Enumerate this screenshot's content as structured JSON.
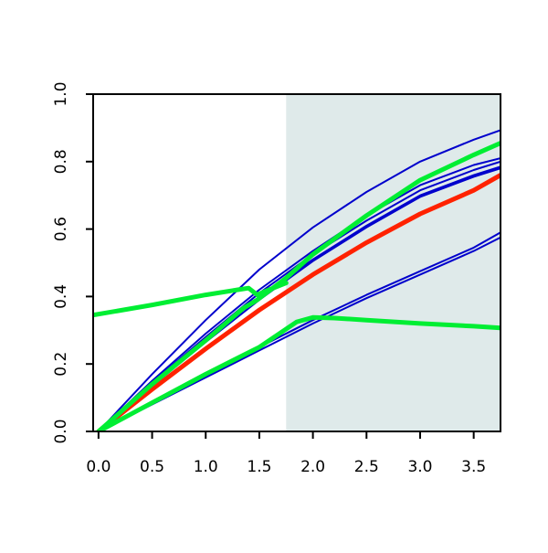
{
  "chart_data": {
    "type": "line",
    "title": "",
    "xlabel": "",
    "ylabel": "",
    "xlim": [
      -0.05,
      3.75
    ],
    "ylim": [
      0,
      1.0
    ],
    "grid": false,
    "x_ticks": [
      "0.0",
      "0.5",
      "1.0",
      "1.5",
      "2.0",
      "2.5",
      "3.0",
      "3.5"
    ],
    "y_ticks": [
      "0.0",
      "0.2",
      "0.4",
      "0.6",
      "0.8",
      "1.0"
    ],
    "shaded_region": {
      "x_start": 1.75,
      "x_end": 3.75,
      "color": "#dfeaea"
    },
    "series": [
      {
        "color": "#0000cc",
        "width": "thin",
        "points": [
          [
            0,
            0
          ],
          [
            0.5,
            0.17
          ],
          [
            1.0,
            0.33
          ],
          [
            1.5,
            0.48
          ],
          [
            2.0,
            0.605
          ],
          [
            2.5,
            0.71
          ],
          [
            3.0,
            0.8
          ],
          [
            3.5,
            0.865
          ],
          [
            3.75,
            0.893
          ]
        ]
      },
      {
        "color": "#0000cc",
        "width": "thin",
        "points": [
          [
            0,
            0
          ],
          [
            0.5,
            0.15
          ],
          [
            1.0,
            0.29
          ],
          [
            1.5,
            0.42
          ],
          [
            2.0,
            0.535
          ],
          [
            2.5,
            0.64
          ],
          [
            3.0,
            0.73
          ],
          [
            3.5,
            0.79
          ],
          [
            3.75,
            0.81
          ]
        ]
      },
      {
        "color": "#0000cc",
        "width": "thin",
        "points": [
          [
            0,
            0
          ],
          [
            0.5,
            0.145
          ],
          [
            1.0,
            0.28
          ],
          [
            1.5,
            0.41
          ],
          [
            2.0,
            0.525
          ],
          [
            2.5,
            0.625
          ],
          [
            3.0,
            0.715
          ],
          [
            3.5,
            0.775
          ],
          [
            3.75,
            0.8
          ]
        ]
      },
      {
        "color": "#0000cc",
        "width": "thin",
        "points": [
          [
            0,
            0
          ],
          [
            0.5,
            0.14
          ],
          [
            1.0,
            0.27
          ],
          [
            1.5,
            0.4
          ],
          [
            2.0,
            0.51
          ],
          [
            2.5,
            0.61
          ],
          [
            3.0,
            0.7
          ],
          [
            3.5,
            0.76
          ],
          [
            3.75,
            0.785
          ]
        ]
      },
      {
        "color": "#0000cc",
        "width": "thin",
        "points": [
          [
            0,
            0
          ],
          [
            0.5,
            0.135
          ],
          [
            1.0,
            0.265
          ],
          [
            1.5,
            0.39
          ],
          [
            2.0,
            0.505
          ],
          [
            2.5,
            0.605
          ],
          [
            3.0,
            0.695
          ],
          [
            3.5,
            0.755
          ],
          [
            3.75,
            0.78
          ]
        ]
      },
      {
        "color": "#0000cc",
        "width": "thin",
        "points": [
          [
            0,
            0
          ],
          [
            0.5,
            0.085
          ],
          [
            1.0,
            0.165
          ],
          [
            1.5,
            0.25
          ],
          [
            2.0,
            0.33
          ],
          [
            2.5,
            0.405
          ],
          [
            3.0,
            0.475
          ],
          [
            3.5,
            0.545
          ],
          [
            3.75,
            0.59
          ]
        ]
      },
      {
        "color": "#0000cc",
        "width": "thin",
        "points": [
          [
            0,
            0
          ],
          [
            0.5,
            0.08
          ],
          [
            1.0,
            0.16
          ],
          [
            1.5,
            0.24
          ],
          [
            2.0,
            0.32
          ],
          [
            2.5,
            0.395
          ],
          [
            3.0,
            0.465
          ],
          [
            3.5,
            0.535
          ],
          [
            3.75,
            0.575
          ]
        ]
      },
      {
        "color": "#ff2200",
        "width": "thick",
        "points": [
          [
            0,
            0
          ],
          [
            0.5,
            0.125
          ],
          [
            1.0,
            0.245
          ],
          [
            1.5,
            0.36
          ],
          [
            2.0,
            0.465
          ],
          [
            2.5,
            0.56
          ],
          [
            3.0,
            0.645
          ],
          [
            3.5,
            0.715
          ],
          [
            3.75,
            0.76
          ]
        ]
      },
      {
        "color": "#00ee33",
        "width": "thick",
        "points": [
          [
            0,
            0
          ],
          [
            0.5,
            0.14
          ],
          [
            1.0,
            0.27
          ],
          [
            1.35,
            0.365
          ],
          [
            1.48,
            0.39
          ],
          [
            1.75,
            0.455
          ],
          [
            2.0,
            0.525
          ],
          [
            2.5,
            0.64
          ],
          [
            3.0,
            0.745
          ],
          [
            3.5,
            0.82
          ],
          [
            3.75,
            0.855
          ]
        ]
      },
      {
        "color": "#00ee33",
        "width": "thick",
        "points": [
          [
            0,
            0
          ],
          [
            0.5,
            0.085
          ],
          [
            1.0,
            0.17
          ],
          [
            1.5,
            0.25
          ],
          [
            1.85,
            0.325
          ],
          [
            2.0,
            0.338
          ],
          [
            2.2,
            0.336
          ],
          [
            2.5,
            0.33
          ],
          [
            3.0,
            0.32
          ],
          [
            3.5,
            0.312
          ],
          [
            3.75,
            0.307
          ]
        ]
      },
      {
        "color": "#00ee33",
        "width": "thick",
        "points": [
          [
            -0.05,
            0.345
          ],
          [
            0.5,
            0.375
          ],
          [
            1.0,
            0.405
          ],
          [
            1.3,
            0.42
          ],
          [
            1.4,
            0.425
          ],
          [
            1.48,
            0.405
          ],
          [
            1.55,
            0.415
          ],
          [
            1.75,
            0.44
          ]
        ]
      }
    ]
  }
}
